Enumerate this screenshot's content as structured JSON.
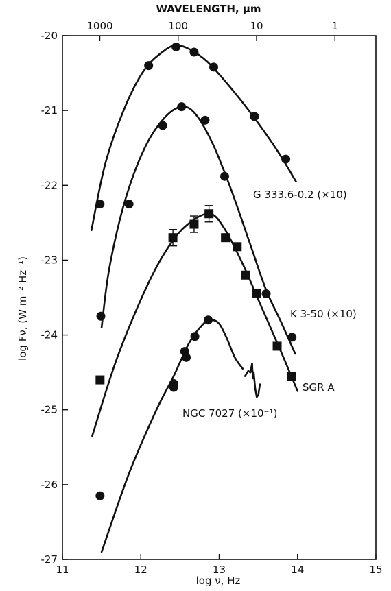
{
  "chart_data": {
    "type": "scatter",
    "xlabel": "log ν, Hz",
    "ylabel": "log Fν, (W m⁻² Hz⁻¹)",
    "top_axis_label": "WAVELENGTH, μm",
    "xlim": [
      11,
      15
    ],
    "ylim": [
      -27,
      -20
    ],
    "x_ticks": [
      "11",
      "12",
      "13",
      "14",
      "15"
    ],
    "y_ticks": [
      "-20",
      "-21",
      "-22",
      "-23",
      "-24",
      "-25",
      "-26",
      "-27"
    ],
    "top_ticks": [
      {
        "label": "1000",
        "log_nu": 11.477
      },
      {
        "label": "100",
        "log_nu": 12.477
      },
      {
        "label": "10",
        "log_nu": 13.477
      },
      {
        "label": "1",
        "log_nu": 14.477
      }
    ],
    "grid": false,
    "series": [
      {
        "name": "G 333.6-0.2 (×10)",
        "marker": "circle",
        "points": [
          [
            11.48,
            -22.25
          ],
          [
            12.1,
            -20.4
          ],
          [
            12.45,
            -20.15
          ],
          [
            12.68,
            -20.22
          ],
          [
            12.93,
            -20.42
          ],
          [
            13.45,
            -21.08
          ],
          [
            13.85,
            -21.65
          ]
        ],
        "fit": [
          [
            11.37,
            -22.6
          ],
          [
            11.55,
            -21.7
          ],
          [
            11.8,
            -20.95
          ],
          [
            12.05,
            -20.45
          ],
          [
            12.3,
            -20.2
          ],
          [
            12.45,
            -20.13
          ],
          [
            12.62,
            -20.18
          ],
          [
            12.85,
            -20.35
          ],
          [
            13.15,
            -20.7
          ],
          [
            13.45,
            -21.1
          ],
          [
            13.75,
            -21.55
          ],
          [
            13.98,
            -21.95
          ]
        ]
      },
      {
        "name": "K 3-50 (×10)",
        "marker": "circle",
        "points": [
          [
            11.49,
            -23.75
          ],
          [
            11.85,
            -22.25
          ],
          [
            12.28,
            -21.2
          ],
          [
            12.52,
            -20.95
          ],
          [
            12.82,
            -21.13
          ],
          [
            13.07,
            -21.88
          ],
          [
            13.6,
            -23.45
          ],
          [
            13.93,
            -24.03
          ]
        ],
        "fit": [
          [
            11.5,
            -23.9
          ],
          [
            11.6,
            -23.1
          ],
          [
            11.8,
            -22.2
          ],
          [
            12.05,
            -21.5
          ],
          [
            12.3,
            -21.1
          ],
          [
            12.52,
            -20.95
          ],
          [
            12.7,
            -21.05
          ],
          [
            12.92,
            -21.45
          ],
          [
            13.15,
            -22.05
          ],
          [
            13.4,
            -22.8
          ],
          [
            13.6,
            -23.4
          ],
          [
            13.8,
            -23.85
          ],
          [
            13.97,
            -24.25
          ]
        ]
      },
      {
        "name": "SGR A",
        "marker": "square",
        "points": [
          [
            11.48,
            -24.6
          ],
          [
            12.41,
            -22.7
          ],
          [
            12.68,
            -22.52
          ],
          [
            12.87,
            -22.38
          ],
          [
            13.08,
            -22.7
          ],
          [
            13.23,
            -22.82
          ],
          [
            13.34,
            -23.2
          ],
          [
            13.48,
            -23.44
          ],
          [
            13.74,
            -24.15
          ],
          [
            13.92,
            -24.55
          ]
        ],
        "error_bars": [
          [
            12.41,
            0.11
          ],
          [
            12.68,
            0.11
          ],
          [
            12.87,
            0.11
          ]
        ],
        "fit": [
          [
            11.38,
            -25.35
          ],
          [
            11.7,
            -24.3
          ],
          [
            12.1,
            -23.3
          ],
          [
            12.4,
            -22.75
          ],
          [
            12.65,
            -22.48
          ],
          [
            12.88,
            -22.38
          ],
          [
            13.05,
            -22.55
          ],
          [
            13.3,
            -23.05
          ],
          [
            13.55,
            -23.65
          ],
          [
            13.8,
            -24.25
          ],
          [
            14.0,
            -24.75
          ]
        ]
      },
      {
        "name": "NGC 7027 (×10⁻¹)",
        "marker": "circle",
        "points": [
          [
            11.48,
            -26.15
          ],
          [
            12.42,
            -24.65
          ],
          [
            12.42,
            -24.7
          ],
          [
            12.56,
            -24.22
          ],
          [
            12.58,
            -24.3
          ],
          [
            12.69,
            -24.02
          ],
          [
            12.86,
            -23.8
          ]
        ],
        "fit": [
          [
            11.5,
            -26.9
          ],
          [
            11.85,
            -25.85
          ],
          [
            12.2,
            -25.0
          ],
          [
            12.42,
            -24.55
          ],
          [
            12.62,
            -24.1
          ],
          [
            12.8,
            -23.85
          ],
          [
            12.9,
            -23.8
          ],
          [
            13.0,
            -23.85
          ],
          [
            13.1,
            -24.05
          ],
          [
            13.2,
            -24.3
          ],
          [
            13.3,
            -24.45
          ]
        ],
        "spectrum": [
          [
            13.33,
            -24.55
          ],
          [
            13.37,
            -24.48
          ],
          [
            13.4,
            -24.5
          ],
          [
            13.42,
            -24.38
          ],
          [
            13.43,
            -24.58
          ],
          [
            13.44,
            -24.5
          ],
          [
            13.46,
            -24.72
          ],
          [
            13.48,
            -24.83
          ],
          [
            13.5,
            -24.8
          ],
          [
            13.52,
            -24.66
          ]
        ]
      }
    ],
    "annotations": [
      {
        "text": "G 333.6-0.2 (×10)",
        "series": 0
      },
      {
        "text": "K 3-50 (×10)",
        "series": 1
      },
      {
        "text": "SGR A",
        "series": 2
      },
      {
        "text": "NGC 7027 (×10⁻¹)",
        "series": 3
      }
    ]
  }
}
